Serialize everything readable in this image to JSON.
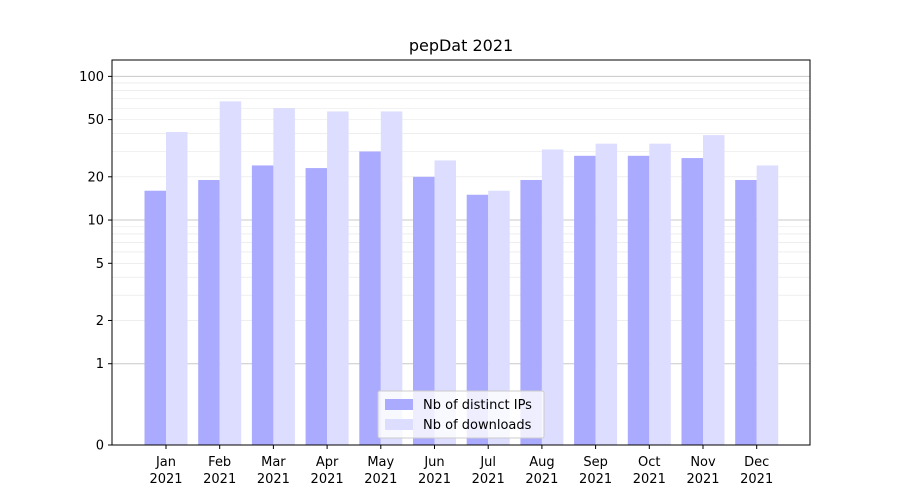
{
  "chart_data": {
    "type": "bar",
    "title": "pepDat 2021",
    "xlabel": "",
    "ylabel": "",
    "y_scale": "symlog",
    "ylim": [
      0,
      130
    ],
    "grid": true,
    "legend_placement": "bottom-center",
    "categories": [
      [
        "Jan",
        "2021"
      ],
      [
        "Feb",
        "2021"
      ],
      [
        "Mar",
        "2021"
      ],
      [
        "Apr",
        "2021"
      ],
      [
        "May",
        "2021"
      ],
      [
        "Jun",
        "2021"
      ],
      [
        "Jul",
        "2021"
      ],
      [
        "Aug",
        "2021"
      ],
      [
        "Sep",
        "2021"
      ],
      [
        "Oct",
        "2021"
      ],
      [
        "Nov",
        "2021"
      ],
      [
        "Dec",
        "2021"
      ]
    ],
    "y_ticks": [
      0,
      1,
      2,
      5,
      10,
      20,
      50,
      100
    ],
    "y_tick_labels": [
      "0",
      "1",
      "2",
      "5",
      "10",
      "20",
      "50",
      "100"
    ],
    "series": [
      {
        "name": "Nb of distinct IPs",
        "color": "#aaaaff",
        "values": [
          16,
          19,
          24,
          23,
          30,
          20,
          15,
          19,
          28,
          28,
          27,
          19
        ]
      },
      {
        "name": "Nb of downloads",
        "color": "#ddddff",
        "values": [
          41,
          67,
          60,
          57,
          57,
          26,
          16,
          31,
          34,
          34,
          39,
          24
        ]
      }
    ]
  }
}
